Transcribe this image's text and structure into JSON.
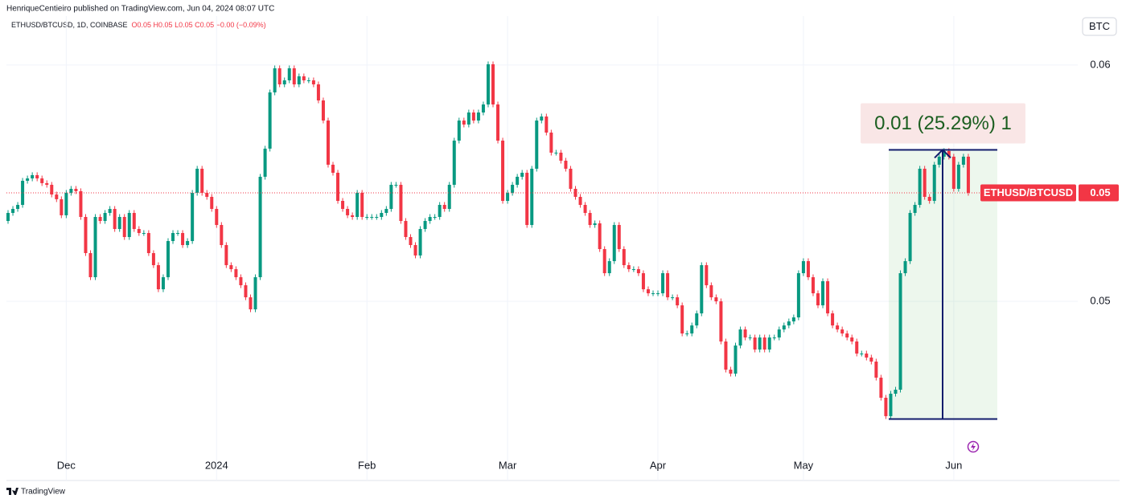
{
  "header": {
    "published": "HenriqueCentieiro published on TradingView.com, Jun 04, 2024 08:07 UTC",
    "symbol_info": "ETHUSD/BTCUSD, 1D, COINBASE",
    "ohlc_info": "O0.05 H0.05 L0.05 C0.05 −0.00 (−0.09%)",
    "currency_button": "BTC"
  },
  "footer": {
    "brand": "TradingView"
  },
  "chart_data": {
    "type": "candlestick",
    "categories": [
      null,
      null,
      null,
      null,
      null,
      null,
      null,
      null,
      null,
      null,
      null,
      null,
      "Dec",
      null,
      null,
      null,
      null,
      null,
      null,
      null,
      null,
      null,
      null,
      null,
      null,
      null,
      null,
      null,
      null,
      null,
      null,
      null,
      null,
      null,
      null,
      null,
      null,
      null,
      null,
      null,
      null,
      null,
      null,
      "2024",
      null,
      null,
      null,
      null,
      null,
      null,
      null,
      null,
      null,
      null,
      null,
      null,
      null,
      null,
      null,
      null,
      null,
      null,
      null,
      null,
      null,
      null,
      null,
      null,
      null,
      null,
      null,
      null,
      null,
      null,
      "Feb",
      null,
      null,
      null,
      null,
      null,
      null,
      null,
      null,
      null,
      null,
      null,
      null,
      null,
      null,
      null,
      null,
      null,
      null,
      null,
      null,
      null,
      null,
      null,
      null,
      null,
      null,
      null,
      null,
      "Mar",
      null,
      null,
      null,
      null,
      null,
      null,
      null,
      null,
      null,
      null,
      null,
      null,
      null,
      null,
      null,
      null,
      null,
      null,
      null,
      null,
      null,
      null,
      null,
      null,
      null,
      null,
      null,
      null,
      null,
      null,
      "Apr",
      null,
      null,
      null,
      null,
      null,
      null,
      null,
      null,
      null,
      null,
      null,
      null,
      null,
      null,
      null,
      null,
      null,
      null,
      null,
      null,
      null,
      null,
      null,
      null,
      null,
      null,
      null,
      null,
      null,
      "May",
      null,
      null,
      null,
      null,
      null,
      null,
      null,
      null,
      null,
      null,
      null,
      null,
      null,
      null,
      null,
      null,
      null,
      null,
      null,
      null,
      null,
      null,
      null,
      null,
      null,
      null,
      null,
      null,
      null,
      null,
      "Jun",
      null,
      null,
      null
    ],
    "series": [
      {
        "name": "ETHUSD/BTCUSD",
        "up_color": "#089981",
        "down_color": "#f23645",
        "open": [
          0.0534,
          0.05374,
          0.05391,
          0.05408,
          0.0551,
          0.0552,
          0.05534,
          0.0552,
          0.055,
          0.05493,
          0.05452,
          0.05432,
          0.05364,
          0.05459,
          0.05476,
          0.05466,
          0.05357,
          0.05204,
          0.05102,
          0.05357,
          0.0534,
          0.05374,
          0.05391,
          0.05306,
          0.05357,
          0.05272,
          0.05374,
          0.05306,
          0.05289,
          0.05289,
          0.05204,
          0.05153,
          0.05051,
          0.05102,
          0.05255,
          0.05289,
          0.05289,
          0.05238,
          0.05255,
          0.05459,
          0.05561,
          0.05459,
          0.05442,
          0.05391,
          0.05323,
          0.05238,
          0.05153,
          0.05136,
          0.05102,
          0.05068,
          0.05017,
          0.04966,
          0.05102,
          0.05527,
          0.05646,
          0.05884,
          0.05986,
          0.05918,
          0.05935,
          0.05986,
          0.05918,
          0.05952,
          0.05935,
          0.05935,
          0.05918,
          0.0585,
          0.05765,
          0.05578,
          0.05544,
          0.05425,
          0.05391,
          0.05364,
          0.05357,
          0.05459,
          0.05357,
          0.05357,
          0.05357,
          0.05357,
          0.05374,
          0.05391,
          0.05493,
          0.05493,
          0.0534,
          0.05272,
          0.05238,
          0.05194,
          0.05306,
          0.0534,
          0.05357,
          0.05357,
          0.05408,
          0.05391,
          0.05493,
          0.0568,
          0.05765,
          0.05748,
          0.05799,
          0.05765,
          0.05799,
          0.05833,
          0.06003,
          0.05833,
          0.0568,
          0.05425,
          0.05459,
          0.05493,
          0.05527,
          0.05544,
          0.05323,
          0.05561,
          0.05765,
          0.05782,
          0.05714,
          0.05629,
          0.05629,
          0.05595,
          0.05561,
          0.05476,
          0.05442,
          0.05408,
          0.05374,
          0.05323,
          0.0533,
          0.05221,
          0.05119,
          0.0517,
          0.05323,
          0.05221,
          0.05153,
          0.05136,
          0.05136,
          0.05119,
          0.05051,
          0.05034,
          0.05034,
          0.05034,
          0.05119,
          0.05017,
          0.05017,
          0.04983,
          0.04864,
          0.04864,
          0.04898,
          0.04949,
          0.05153,
          0.05068,
          0.05017,
          0.05,
          0.0483,
          0.04711,
          0.04694,
          0.04813,
          0.04881,
          0.04847,
          0.04847,
          0.04796,
          0.04847,
          0.04796,
          0.04847,
          0.04847,
          0.04881,
          0.04898,
          0.04915,
          0.04932,
          0.05119,
          0.0517,
          0.05102,
          0.05034,
          0.04983,
          0.05085,
          0.04949,
          0.04898,
          0.04881,
          0.04864,
          0.04847,
          0.0483,
          0.04779,
          0.04779,
          0.04762,
          0.04745,
          0.04677,
          0.04592,
          0.04514,
          0.04609,
          0.04626,
          0.05119,
          0.0517,
          0.05374,
          0.05408,
          0.05561,
          0.05442,
          0.05425,
          0.05578,
          0.05612,
          0.05636,
          0.05612,
          0.05476,
          0.05578,
          0.05612
        ],
        "high": [
          0.05386,
          0.05403,
          0.0542,
          0.05522,
          0.05532,
          0.05546,
          0.05546,
          0.05532,
          0.05512,
          0.05505,
          0.05464,
          0.05444,
          0.05471,
          0.05488,
          0.05488,
          0.05478,
          0.05369,
          0.05216,
          0.05369,
          0.05369,
          0.05386,
          0.05403,
          0.05403,
          0.05369,
          0.05369,
          0.05386,
          0.05386,
          0.05318,
          0.05301,
          0.05301,
          0.05216,
          0.05165,
          0.05114,
          0.05267,
          0.05301,
          0.05301,
          0.05301,
          0.05267,
          0.05471,
          0.05573,
          0.05573,
          0.05471,
          0.05454,
          0.05403,
          0.05335,
          0.0525,
          0.05165,
          0.05148,
          0.05114,
          0.0508,
          0.05029,
          0.05114,
          0.05539,
          0.05658,
          0.05896,
          0.05998,
          0.05998,
          0.05947,
          0.05998,
          0.05998,
          0.05964,
          0.05964,
          0.05947,
          0.05947,
          0.0593,
          0.05862,
          0.05777,
          0.0559,
          0.05556,
          0.05437,
          0.05403,
          0.05376,
          0.05471,
          0.05471,
          0.05369,
          0.05369,
          0.05369,
          0.05386,
          0.05403,
          0.05505,
          0.05505,
          0.05505,
          0.05352,
          0.05284,
          0.0525,
          0.05318,
          0.05352,
          0.05369,
          0.05369,
          0.0542,
          0.0542,
          0.05505,
          0.05692,
          0.05777,
          0.05777,
          0.05811,
          0.05811,
          0.05811,
          0.05845,
          0.06015,
          0.06015,
          0.05845,
          0.05692,
          0.05471,
          0.05505,
          0.05539,
          0.05556,
          0.05556,
          0.05573,
          0.05777,
          0.05794,
          0.05794,
          0.05726,
          0.05641,
          0.05641,
          0.05607,
          0.05573,
          0.05488,
          0.05454,
          0.0542,
          0.05386,
          0.05342,
          0.05342,
          0.05233,
          0.05182,
          0.05335,
          0.05335,
          0.05233,
          0.05165,
          0.05148,
          0.05148,
          0.05131,
          0.05063,
          0.05046,
          0.05046,
          0.05131,
          0.05131,
          0.05029,
          0.05029,
          0.04995,
          0.04876,
          0.0491,
          0.04961,
          0.05165,
          0.05165,
          0.0508,
          0.05029,
          0.05012,
          0.04842,
          0.04723,
          0.04825,
          0.04893,
          0.04893,
          0.04859,
          0.04859,
          0.04859,
          0.04859,
          0.04859,
          0.04859,
          0.04893,
          0.0491,
          0.04927,
          0.04944,
          0.05131,
          0.05182,
          0.05182,
          0.05114,
          0.05046,
          0.05097,
          0.05097,
          0.04961,
          0.0491,
          0.04893,
          0.04876,
          0.04859,
          0.04842,
          0.04791,
          0.04791,
          0.04774,
          0.04757,
          0.04689,
          0.04604,
          0.04621,
          0.04638,
          0.05131,
          0.05182,
          0.05386,
          0.0542,
          0.05573,
          0.05573,
          0.05454,
          0.0559,
          0.05624,
          0.05648,
          0.05648,
          0.05624,
          0.0559,
          0.05624,
          0.05624
        ],
        "low": [
          0.05328,
          0.05362,
          0.05379,
          0.05396,
          0.05498,
          0.05508,
          0.05508,
          0.05488,
          0.05481,
          0.0544,
          0.0542,
          0.05352,
          0.05352,
          0.05447,
          0.05454,
          0.05345,
          0.05192,
          0.0509,
          0.0509,
          0.05328,
          0.05328,
          0.05362,
          0.05294,
          0.05294,
          0.0526,
          0.0526,
          0.05294,
          0.05277,
          0.05277,
          0.05192,
          0.05141,
          0.05039,
          0.05039,
          0.0509,
          0.05243,
          0.05277,
          0.05226,
          0.05226,
          0.05243,
          0.05447,
          0.05447,
          0.0543,
          0.05379,
          0.05311,
          0.05226,
          0.05141,
          0.05124,
          0.0509,
          0.05056,
          0.05005,
          0.04954,
          0.04954,
          0.0509,
          0.05515,
          0.05634,
          0.05872,
          0.05906,
          0.05906,
          0.05923,
          0.05906,
          0.05906,
          0.05923,
          0.05923,
          0.05906,
          0.05838,
          0.05753,
          0.05566,
          0.05532,
          0.05413,
          0.05379,
          0.05352,
          0.05345,
          0.05345,
          0.05345,
          0.05345,
          0.05345,
          0.05345,
          0.05345,
          0.05362,
          0.05379,
          0.05481,
          0.05328,
          0.0526,
          0.05226,
          0.05182,
          0.05182,
          0.05294,
          0.05328,
          0.05345,
          0.05345,
          0.05379,
          0.05379,
          0.05481,
          0.05668,
          0.05736,
          0.05736,
          0.05753,
          0.05753,
          0.05787,
          0.05821,
          0.05821,
          0.05668,
          0.05413,
          0.05413,
          0.05447,
          0.05481,
          0.05515,
          0.05311,
          0.05311,
          0.05549,
          0.05753,
          0.05702,
          0.05617,
          0.05617,
          0.05583,
          0.05549,
          0.05464,
          0.0543,
          0.05396,
          0.05362,
          0.05311,
          0.05311,
          0.05209,
          0.05107,
          0.05107,
          0.05158,
          0.05209,
          0.05141,
          0.05124,
          0.05124,
          0.05107,
          0.05039,
          0.05022,
          0.05022,
          0.05022,
          0.05022,
          0.05005,
          0.05005,
          0.04971,
          0.04852,
          0.04852,
          0.04852,
          0.04886,
          0.04937,
          0.05056,
          0.05005,
          0.04988,
          0.04818,
          0.04699,
          0.04682,
          0.04682,
          0.04801,
          0.04835,
          0.04835,
          0.04784,
          0.04784,
          0.04784,
          0.04784,
          0.04835,
          0.04835,
          0.04869,
          0.04886,
          0.04903,
          0.0492,
          0.05107,
          0.0509,
          0.05022,
          0.04971,
          0.04971,
          0.04937,
          0.04886,
          0.04869,
          0.04852,
          0.04835,
          0.04818,
          0.04767,
          0.04767,
          0.0475,
          0.04733,
          0.04665,
          0.0458,
          0.04502,
          0.04502,
          0.04597,
          0.04614,
          0.05107,
          0.05158,
          0.05362,
          0.05396,
          0.0543,
          0.05413,
          0.05413,
          0.05566,
          0.056,
          0.056,
          0.05464,
          0.05464,
          0.05566,
          0.05447
        ],
        "close": [
          0.05374,
          0.05391,
          0.05408,
          0.0551,
          0.0552,
          0.05534,
          0.0552,
          0.055,
          0.05493,
          0.05452,
          0.05432,
          0.05364,
          0.05459,
          0.05476,
          0.05466,
          0.05357,
          0.05204,
          0.05102,
          0.05357,
          0.0534,
          0.05374,
          0.05391,
          0.05306,
          0.05357,
          0.05272,
          0.05374,
          0.05306,
          0.05289,
          0.05289,
          0.05204,
          0.05153,
          0.05051,
          0.05102,
          0.05255,
          0.05289,
          0.05289,
          0.05238,
          0.05255,
          0.05459,
          0.05561,
          0.05459,
          0.05442,
          0.05391,
          0.05323,
          0.05238,
          0.05153,
          0.05136,
          0.05102,
          0.05068,
          0.05017,
          0.04966,
          0.05102,
          0.05527,
          0.05646,
          0.05884,
          0.05986,
          0.05918,
          0.05935,
          0.05986,
          0.05918,
          0.05952,
          0.05935,
          0.05935,
          0.05918,
          0.0585,
          0.05765,
          0.05578,
          0.05544,
          0.05425,
          0.05391,
          0.05364,
          0.05357,
          0.05459,
          0.05357,
          0.05357,
          0.05357,
          0.05357,
          0.05374,
          0.05391,
          0.05493,
          0.05493,
          0.0534,
          0.05272,
          0.05238,
          0.05194,
          0.05306,
          0.0534,
          0.05357,
          0.05357,
          0.05408,
          0.05391,
          0.05493,
          0.0568,
          0.05765,
          0.05748,
          0.05799,
          0.05765,
          0.05799,
          0.05833,
          0.06003,
          0.05833,
          0.0568,
          0.05425,
          0.05459,
          0.05493,
          0.05527,
          0.05544,
          0.05323,
          0.05561,
          0.05765,
          0.05782,
          0.05714,
          0.05629,
          0.05629,
          0.05595,
          0.05561,
          0.05476,
          0.05442,
          0.05408,
          0.05374,
          0.05323,
          0.0533,
          0.05221,
          0.05119,
          0.0517,
          0.05323,
          0.05221,
          0.05153,
          0.05136,
          0.05136,
          0.05119,
          0.05051,
          0.05034,
          0.05034,
          0.05034,
          0.05119,
          0.05017,
          0.05017,
          0.04983,
          0.04864,
          0.04864,
          0.04898,
          0.04949,
          0.05153,
          0.05068,
          0.05017,
          0.05,
          0.0483,
          0.04711,
          0.04694,
          0.04813,
          0.04881,
          0.04847,
          0.04847,
          0.04796,
          0.04847,
          0.04796,
          0.04847,
          0.04847,
          0.04881,
          0.04898,
          0.04915,
          0.04932,
          0.05119,
          0.0517,
          0.05102,
          0.05034,
          0.04983,
          0.05085,
          0.04949,
          0.04898,
          0.04881,
          0.04864,
          0.04847,
          0.0483,
          0.04779,
          0.04779,
          0.04762,
          0.04745,
          0.04677,
          0.04592,
          0.04514,
          0.04609,
          0.04626,
          0.05119,
          0.0517,
          0.05374,
          0.05408,
          0.05561,
          0.05442,
          0.05425,
          0.05578,
          0.05612,
          0.05636,
          0.05612,
          0.05476,
          0.05578,
          0.05612,
          0.05459
        ]
      }
    ],
    "last_price_label": "0.05",
    "last_price_color": "#f23645",
    "measure": {
      "label": "0.01 (25.29%) 1",
      "from": 0.04502,
      "to": 0.05641,
      "line_color": "#131c6c",
      "fill": "rgba(76,175,80,0.10)",
      "label_color": "#1b5e20",
      "label_fill": "#f9e6e6"
    },
    "ylim": [
      0.04337,
      0.06207
    ],
    "yticks": [
      0.05,
      0.06
    ],
    "grid": true
  }
}
